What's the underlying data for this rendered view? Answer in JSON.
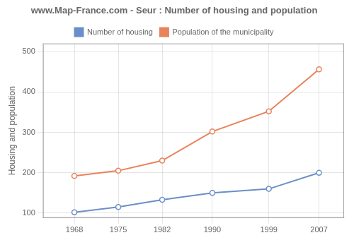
{
  "chart_data": {
    "type": "line",
    "title": "www.Map-France.com - Seur : Number of housing and population",
    "ylabel": "Housing and population",
    "x": [
      1968,
      1975,
      1982,
      1990,
      1999,
      2007
    ],
    "series": [
      {
        "name": "Number of housing",
        "color": "#6a8fc8",
        "values": [
          102,
          115,
          133,
          150,
          160,
          200
        ]
      },
      {
        "name": "Population of the municipality",
        "color": "#e8825a",
        "values": [
          192,
          205,
          230,
          302,
          352,
          456
        ]
      }
    ],
    "xlim": [
      1963,
      2011
    ],
    "xticks": [
      1968,
      1975,
      1982,
      1990,
      1999,
      2007
    ],
    "ylim": [
      88,
      520
    ],
    "yticks": [
      100,
      200,
      300,
      400,
      500
    ],
    "grid": true,
    "legend": "top",
    "marker": "circle"
  }
}
